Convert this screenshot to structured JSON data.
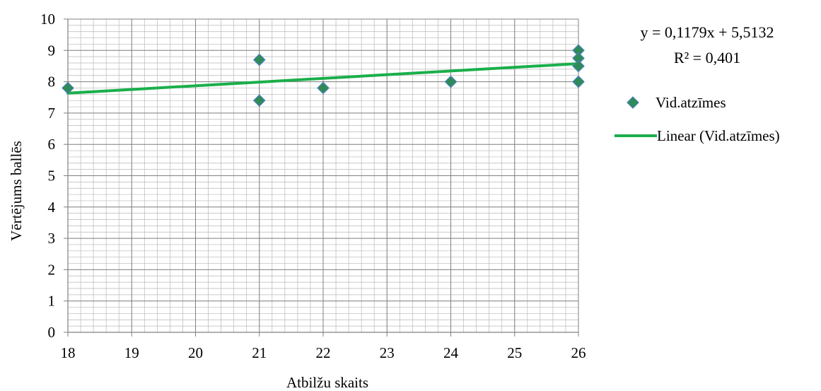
{
  "chart_data": {
    "type": "scatter",
    "xlabel": "Atbilžu skaits",
    "ylabel": "Vērtējums ballēs",
    "xlim": [
      18,
      26
    ],
    "ylim": [
      0,
      10
    ],
    "x_ticks": [
      "18",
      "19",
      "20",
      "21",
      "22",
      "23",
      "24",
      "25",
      "26"
    ],
    "y_ticks": [
      "0",
      "1",
      "2",
      "3",
      "4",
      "5",
      "6",
      "7",
      "8",
      "9",
      "10"
    ],
    "grid": true,
    "minor_grid": true,
    "legend_position": "right",
    "series": [
      {
        "name": "Vid.atzīmes",
        "marker": "diamond",
        "color": "#2e8b57",
        "points": [
          {
            "x": 18,
            "y": 7.8
          },
          {
            "x": 21,
            "y": 8.7
          },
          {
            "x": 21,
            "y": 7.4
          },
          {
            "x": 22,
            "y": 7.8
          },
          {
            "x": 24,
            "y": 8.0
          },
          {
            "x": 26,
            "y": 9.0
          },
          {
            "x": 26,
            "y": 8.75
          },
          {
            "x": 26,
            "y": 8.5
          },
          {
            "x": 26,
            "y": 8.0
          }
        ]
      }
    ],
    "trendline": {
      "name": "Linear (Vid.atzīmes)",
      "type": "linear",
      "slope": 0.1179,
      "intercept": 5.5132,
      "color": "#1aaf4b",
      "equation": "y = 0,1179x + 5,5132",
      "r_squared": "R² = 0,401"
    }
  }
}
